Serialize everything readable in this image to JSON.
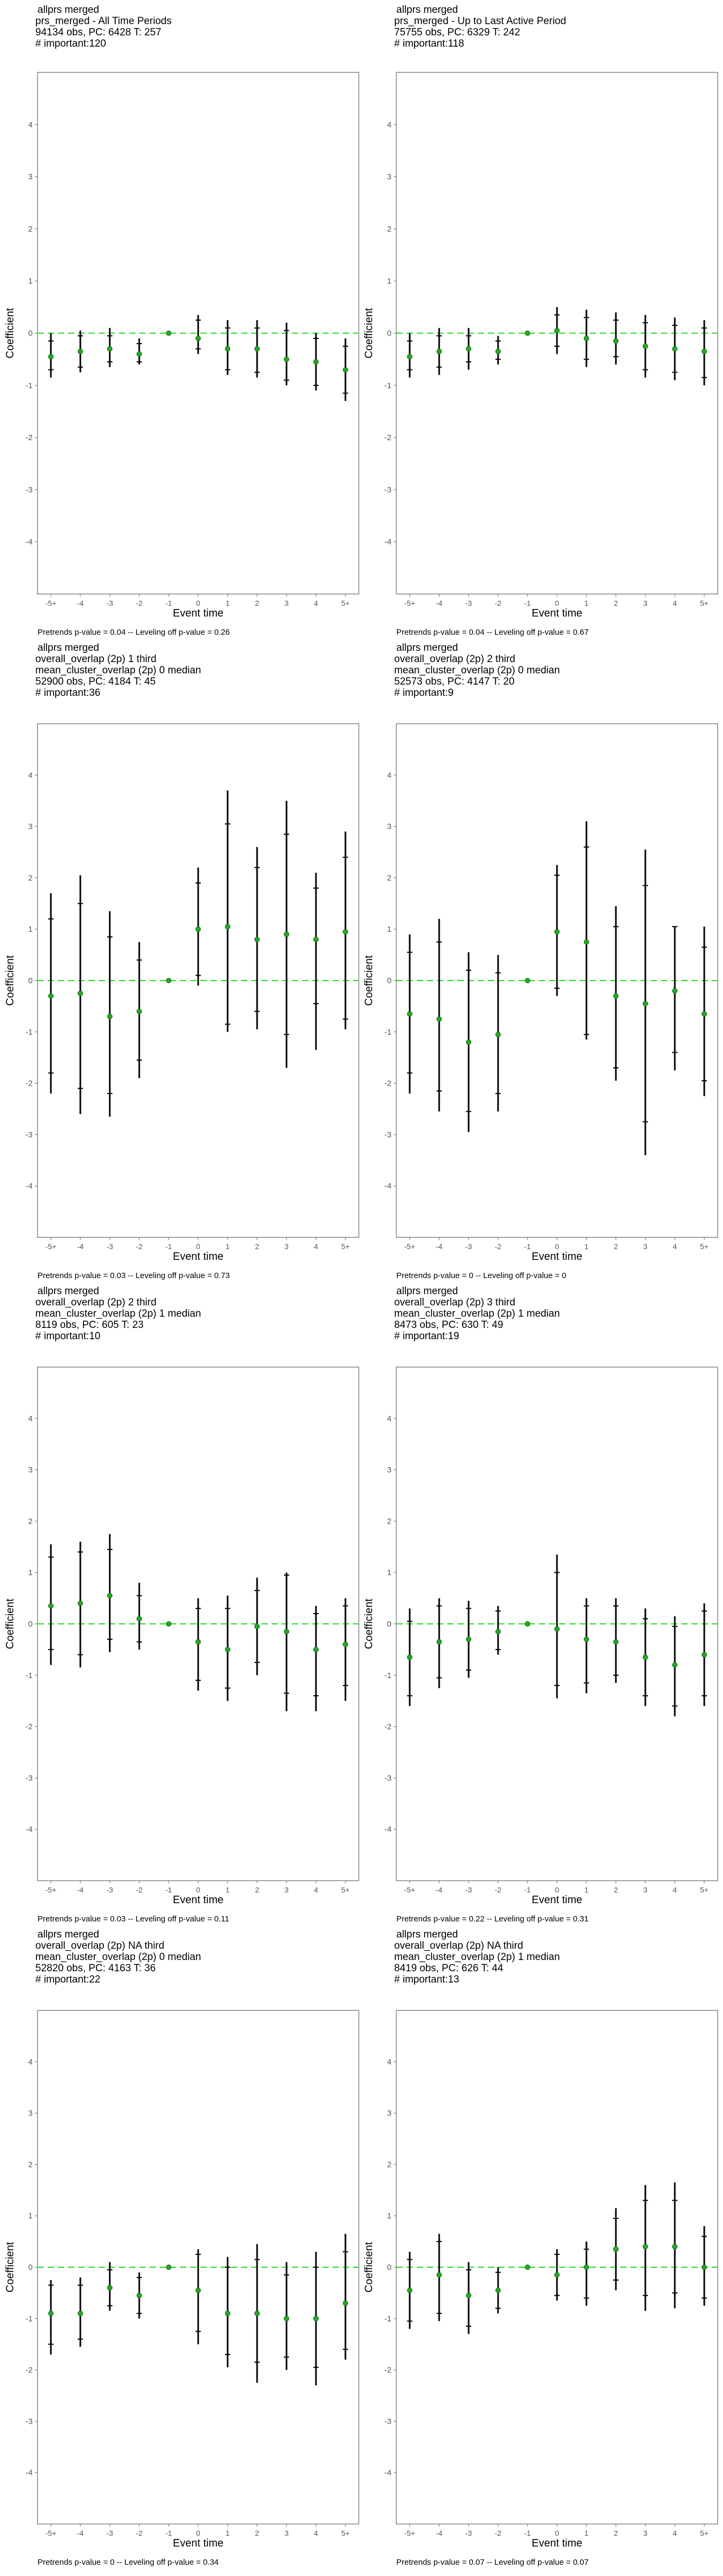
{
  "chart_data": [
    {
      "type": "scatter",
      "title_lines": [
        "allprs merged",
        "prs_merged - All Time Periods",
        "94134 obs, PC: 6428 T: 257",
        "# important:120"
      ],
      "xlabel": "Event time",
      "ylabel": "Coefficient",
      "categories": [
        "-5+",
        "-4",
        "-3",
        "-2",
        "-1",
        "0",
        "1",
        "2",
        "3",
        "4",
        "5+"
      ],
      "ylim": [
        -5,
        5
      ],
      "yticks": [
        4,
        3,
        2,
        1,
        0,
        -1,
        -2,
        -3,
        -4
      ],
      "estimates": [
        -0.45,
        -0.35,
        -0.3,
        -0.4,
        0,
        -0.1,
        -0.3,
        -0.3,
        -0.5,
        -0.55,
        -0.7
      ],
      "ci95": [
        [
          -0.85,
          0.0
        ],
        [
          -0.75,
          0.05
        ],
        [
          -0.65,
          0.1
        ],
        [
          -0.6,
          -0.1
        ],
        null,
        [
          -0.4,
          0.35
        ],
        [
          -0.8,
          0.25
        ],
        [
          -0.85,
          0.25
        ],
        [
          -1.0,
          0.2
        ],
        [
          -1.1,
          0.0
        ],
        [
          -1.3,
          -0.1
        ]
      ],
      "ci90": [
        [
          -0.7,
          -0.15
        ],
        [
          -0.65,
          -0.05
        ],
        [
          -0.55,
          -0.05
        ],
        [
          -0.55,
          -0.2
        ],
        null,
        [
          -0.3,
          0.25
        ],
        [
          -0.7,
          0.1
        ],
        [
          -0.75,
          0.1
        ],
        [
          -0.9,
          0.05
        ],
        [
          -1.0,
          -0.1
        ],
        [
          -1.15,
          -0.25
        ]
      ],
      "footnote": "Pretrends p-value = 0.04 -- Leveling off p-value = 0.26"
    },
    {
      "type": "scatter",
      "title_lines": [
        "allprs merged",
        "prs_merged - Up to Last Active Period",
        "75755 obs, PC: 6329 T: 242",
        "# important:118"
      ],
      "xlabel": "Event time",
      "ylabel": "Coefficient",
      "categories": [
        "-5+",
        "-4",
        "-3",
        "-2",
        "-1",
        "0",
        "1",
        "2",
        "3",
        "4",
        "5+"
      ],
      "ylim": [
        -5,
        5
      ],
      "yticks": [
        4,
        3,
        2,
        1,
        0,
        -1,
        -2,
        -3,
        -4
      ],
      "estimates": [
        -0.45,
        -0.35,
        -0.3,
        -0.35,
        0,
        0.05,
        -0.1,
        -0.15,
        -0.25,
        -0.3,
        -0.35
      ],
      "ci95": [
        [
          -0.85,
          0.0
        ],
        [
          -0.8,
          0.1
        ],
        [
          -0.7,
          0.1
        ],
        [
          -0.6,
          -0.05
        ],
        null,
        [
          -0.4,
          0.5
        ],
        [
          -0.65,
          0.45
        ],
        [
          -0.6,
          0.4
        ],
        [
          -0.85,
          0.35
        ],
        [
          -0.9,
          0.3
        ],
        [
          -1.0,
          0.25
        ]
      ],
      "ci90": [
        [
          -0.7,
          -0.15
        ],
        [
          -0.65,
          -0.05
        ],
        [
          -0.55,
          -0.05
        ],
        [
          -0.5,
          -0.15
        ],
        null,
        [
          -0.25,
          0.35
        ],
        [
          -0.5,
          0.3
        ],
        [
          -0.45,
          0.25
        ],
        [
          -0.7,
          0.2
        ],
        [
          -0.75,
          0.15
        ],
        [
          -0.85,
          0.1
        ]
      ],
      "footnote": "Pretrends p-value = 0.04 -- Leveling off p-value = 0.67"
    },
    {
      "type": "scatter",
      "title_lines": [
        "allprs merged",
        "overall_overlap (2p) 1 third",
        "mean_cluster_overlap (2p) 0 median",
        "52900 obs, PC: 4184 T: 45",
        "# important:36"
      ],
      "xlabel": "Event time",
      "ylabel": "Coefficient",
      "categories": [
        "-5+",
        "-4",
        "-3",
        "-2",
        "-1",
        "0",
        "1",
        "2",
        "3",
        "4",
        "5+"
      ],
      "ylim": [
        -5,
        5
      ],
      "yticks": [
        4,
        3,
        2,
        1,
        0,
        -1,
        -2,
        -3,
        -4
      ],
      "estimates": [
        -0.3,
        -0.25,
        -0.7,
        -0.6,
        0,
        1.0,
        1.05,
        0.8,
        0.9,
        0.8,
        0.95
      ],
      "ci95": [
        [
          -2.2,
          1.7
        ],
        [
          -2.6,
          2.05
        ],
        [
          -2.65,
          1.35
        ],
        [
          -1.9,
          0.75
        ],
        null,
        [
          -0.1,
          2.2
        ],
        [
          -1.0,
          3.7
        ],
        [
          -0.95,
          2.6
        ],
        [
          -1.7,
          3.5
        ],
        [
          -1.35,
          2.1
        ],
        [
          -0.95,
          2.9
        ]
      ],
      "ci90": [
        [
          -1.8,
          1.2
        ],
        [
          -2.1,
          1.5
        ],
        [
          -2.2,
          0.85
        ],
        [
          -1.55,
          0.4
        ],
        null,
        [
          0.1,
          1.9
        ],
        [
          -0.85,
          3.05
        ],
        [
          -0.6,
          2.2
        ],
        [
          -1.05,
          2.85
        ],
        [
          -0.45,
          1.8
        ],
        [
          -0.75,
          2.4
        ]
      ],
      "footnote": "Pretrends p-value = 0.03 -- Leveling off p-value = 0.73"
    },
    {
      "type": "scatter",
      "title_lines": [
        "allprs merged",
        "overall_overlap (2p) 2 third",
        "mean_cluster_overlap (2p) 0 median",
        "52573 obs, PC: 4147 T: 20",
        "# important:9"
      ],
      "xlabel": "Event time",
      "ylabel": "Coefficient",
      "categories": [
        "-5+",
        "-4",
        "-3",
        "-2",
        "-1",
        "0",
        "1",
        "2",
        "3",
        "4",
        "5+"
      ],
      "ylim": [
        -5,
        5
      ],
      "yticks": [
        4,
        3,
        2,
        1,
        0,
        -1,
        -2,
        -3,
        -4
      ],
      "estimates": [
        -0.65,
        -0.75,
        -1.2,
        -1.05,
        0,
        0.95,
        0.75,
        -0.3,
        -0.45,
        -0.2,
        -0.65
      ],
      "ci95": [
        [
          -2.2,
          0.9
        ],
        [
          -2.55,
          1.2
        ],
        [
          -2.95,
          0.55
        ],
        [
          -2.55,
          0.5
        ],
        null,
        [
          -0.3,
          2.25
        ],
        [
          -1.15,
          3.1
        ],
        [
          -1.95,
          1.45
        ],
        [
          -3.4,
          2.55
        ],
        [
          -1.75,
          1.05
        ],
        [
          -2.25,
          1.05
        ]
      ],
      "ci90": [
        [
          -1.8,
          0.55
        ],
        [
          -2.15,
          0.75
        ],
        [
          -2.55,
          0.2
        ],
        [
          -2.2,
          0.15
        ],
        null,
        [
          -0.15,
          2.05
        ],
        [
          -1.05,
          2.6
        ],
        [
          -1.7,
          1.05
        ],
        [
          -2.75,
          1.85
        ],
        [
          -1.4,
          1.05
        ],
        [
          -1.95,
          0.65
        ]
      ],
      "footnote": "Pretrends p-value = 0 -- Leveling off p-value = 0"
    },
    {
      "type": "scatter",
      "title_lines": [
        "allprs merged",
        "overall_overlap (2p) 2 third",
        "mean_cluster_overlap (2p) 1 median",
        "8119 obs, PC: 605 T: 23",
        "# important:10"
      ],
      "xlabel": "Event time",
      "ylabel": "Coefficient",
      "categories": [
        "-5+",
        "-4",
        "-3",
        "-2",
        "-1",
        "0",
        "1",
        "2",
        "3",
        "4",
        "5+"
      ],
      "ylim": [
        -5,
        5
      ],
      "yticks": [
        4,
        3,
        2,
        1,
        0,
        -1,
        -2,
        -3,
        -4
      ],
      "estimates": [
        0.35,
        0.4,
        0.55,
        0.1,
        0,
        -0.35,
        -0.5,
        -0.05,
        -0.15,
        -0.5,
        -0.4
      ],
      "ci95": [
        [
          -0.8,
          1.55
        ],
        [
          -0.85,
          1.6
        ],
        [
          -0.55,
          1.75
        ],
        [
          -0.5,
          0.8
        ],
        null,
        [
          -1.3,
          0.5
        ],
        [
          -1.5,
          0.55
        ],
        [
          -1.0,
          0.9
        ],
        [
          -1.7,
          1.0
        ],
        [
          -1.7,
          0.35
        ],
        [
          -1.5,
          0.5
        ]
      ],
      "ci90": [
        [
          -0.5,
          1.3
        ],
        [
          -0.6,
          1.4
        ],
        [
          -0.3,
          1.45
        ],
        [
          -0.35,
          0.55
        ],
        null,
        [
          -1.1,
          0.3
        ],
        [
          -1.25,
          0.3
        ],
        [
          -0.75,
          0.65
        ],
        [
          -1.35,
          0.95
        ],
        [
          -1.4,
          0.2
        ],
        [
          -1.2,
          0.35
        ]
      ],
      "footnote": "Pretrends p-value = 0.03 -- Leveling off p-value = 0.11"
    },
    {
      "type": "scatter",
      "title_lines": [
        "allprs merged",
        "overall_overlap (2p) 3 third",
        "mean_cluster_overlap (2p) 1 median",
        "8473 obs, PC: 630 T: 49",
        "# important:19"
      ],
      "xlabel": "Event time",
      "ylabel": "Coefficient",
      "categories": [
        "-5+",
        "-4",
        "-3",
        "-2",
        "-1",
        "0",
        "1",
        "2",
        "3",
        "4",
        "5+"
      ],
      "ylim": [
        -5,
        5
      ],
      "yticks": [
        4,
        3,
        2,
        1,
        0,
        -1,
        -2,
        -3,
        -4
      ],
      "estimates": [
        -0.65,
        -0.35,
        -0.3,
        -0.15,
        0,
        -0.1,
        -0.3,
        -0.35,
        -0.65,
        -0.8,
        -0.6
      ],
      "ci95": [
        [
          -1.6,
          0.3
        ],
        [
          -1.25,
          0.5
        ],
        [
          -1.05,
          0.45
        ],
        [
          -0.6,
          0.35
        ],
        null,
        [
          -1.45,
          1.35
        ],
        [
          -1.35,
          0.5
        ],
        [
          -1.15,
          0.5
        ],
        [
          -1.6,
          0.3
        ],
        [
          -1.8,
          0.15
        ],
        [
          -1.6,
          0.4
        ]
      ],
      "ci90": [
        [
          -1.4,
          0.05
        ],
        [
          -1.05,
          0.35
        ],
        [
          -0.9,
          0.3
        ],
        [
          -0.5,
          0.25
        ],
        null,
        [
          -1.2,
          1.0
        ],
        [
          -1.15,
          0.35
        ],
        [
          -1.0,
          0.35
        ],
        [
          -1.4,
          0.1
        ],
        [
          -1.6,
          -0.05
        ],
        [
          -1.4,
          0.25
        ]
      ],
      "footnote": "Pretrends p-value = 0.22 -- Leveling off p-value = 0.31"
    },
    {
      "type": "scatter",
      "title_lines": [
        "allprs merged",
        "overall_overlap (2p) NA third",
        "mean_cluster_overlap (2p) 0 median",
        "52820 obs, PC: 4163 T: 36",
        "# important:22"
      ],
      "xlabel": "Event time",
      "ylabel": "Coefficient",
      "categories": [
        "-5+",
        "-4",
        "-3",
        "-2",
        "-1",
        "0",
        "1",
        "2",
        "3",
        "4",
        "5+"
      ],
      "ylim": [
        -5,
        5
      ],
      "yticks": [
        4,
        3,
        2,
        1,
        0,
        -1,
        -2,
        -3,
        -4
      ],
      "estimates": [
        -0.9,
        -0.9,
        -0.4,
        -0.55,
        0,
        -0.45,
        -0.9,
        -0.9,
        -1.0,
        -1.0,
        -0.7
      ],
      "ci95": [
        [
          -1.7,
          -0.25
        ],
        [
          -1.55,
          -0.2
        ],
        [
          -0.85,
          0.1
        ],
        [
          -1.0,
          -0.1
        ],
        null,
        [
          -1.5,
          0.35
        ],
        [
          -1.95,
          0.2
        ],
        [
          -2.25,
          0.45
        ],
        [
          -2.0,
          0.1
        ],
        [
          -2.3,
          0.3
        ],
        [
          -1.8,
          0.65
        ]
      ],
      "ci90": [
        [
          -1.5,
          -0.35
        ],
        [
          -1.4,
          -0.35
        ],
        [
          -0.75,
          -0.05
        ],
        [
          -0.9,
          -0.2
        ],
        null,
        [
          -1.25,
          0.25
        ],
        [
          -1.7,
          0.0
        ],
        [
          -1.85,
          0.15
        ],
        [
          -1.75,
          -0.15
        ],
        [
          -1.95,
          0.0
        ],
        [
          -1.6,
          0.3
        ]
      ],
      "footnote": "Pretrends p-value = 0 -- Leveling off p-value = 0.34"
    },
    {
      "type": "scatter",
      "title_lines": [
        "allprs merged",
        "overall_overlap (2p) NA third",
        "mean_cluster_overlap (2p) 1 median",
        "8419 obs, PC: 626 T: 44",
        "# important:13"
      ],
      "xlabel": "Event time",
      "ylabel": "Coefficient",
      "categories": [
        "-5+",
        "-4",
        "-3",
        "-2",
        "-1",
        "0",
        "1",
        "2",
        "3",
        "4",
        "5+"
      ],
      "ylim": [
        -5,
        5
      ],
      "yticks": [
        4,
        3,
        2,
        1,
        0,
        -1,
        -2,
        -3,
        -4
      ],
      "estimates": [
        -0.45,
        -0.15,
        -0.55,
        -0.45,
        0,
        -0.15,
        0.0,
        0.35,
        0.4,
        0.4,
        0.0
      ],
      "ci95": [
        [
          -1.2,
          0.3
        ],
        [
          -1.05,
          0.65
        ],
        [
          -1.3,
          0.1
        ],
        [
          -0.9,
          0.0
        ],
        null,
        [
          -0.65,
          0.35
        ],
        [
          -0.75,
          0.5
        ],
        [
          -0.45,
          1.15
        ],
        [
          -0.85,
          1.6
        ],
        [
          -0.8,
          1.65
        ],
        [
          -0.75,
          0.8
        ]
      ],
      "ci90": [
        [
          -1.05,
          0.15
        ],
        [
          -0.9,
          0.5
        ],
        [
          -1.15,
          -0.05
        ],
        [
          -0.8,
          -0.1
        ],
        null,
        [
          -0.55,
          0.25
        ],
        [
          -0.6,
          0.35
        ],
        [
          -0.25,
          0.95
        ],
        [
          -0.55,
          1.3
        ],
        [
          -0.5,
          1.3
        ],
        [
          -0.6,
          0.6
        ]
      ],
      "footnote": "Pretrends p-value = 0.07 -- Leveling off p-value = 0.07"
    }
  ],
  "colors": {
    "zero_line": "#22dd22",
    "point": "#22aa22",
    "errorbar": "#000000",
    "axis": "#666666",
    "tick_text": "#555555",
    "text": "#000000"
  }
}
